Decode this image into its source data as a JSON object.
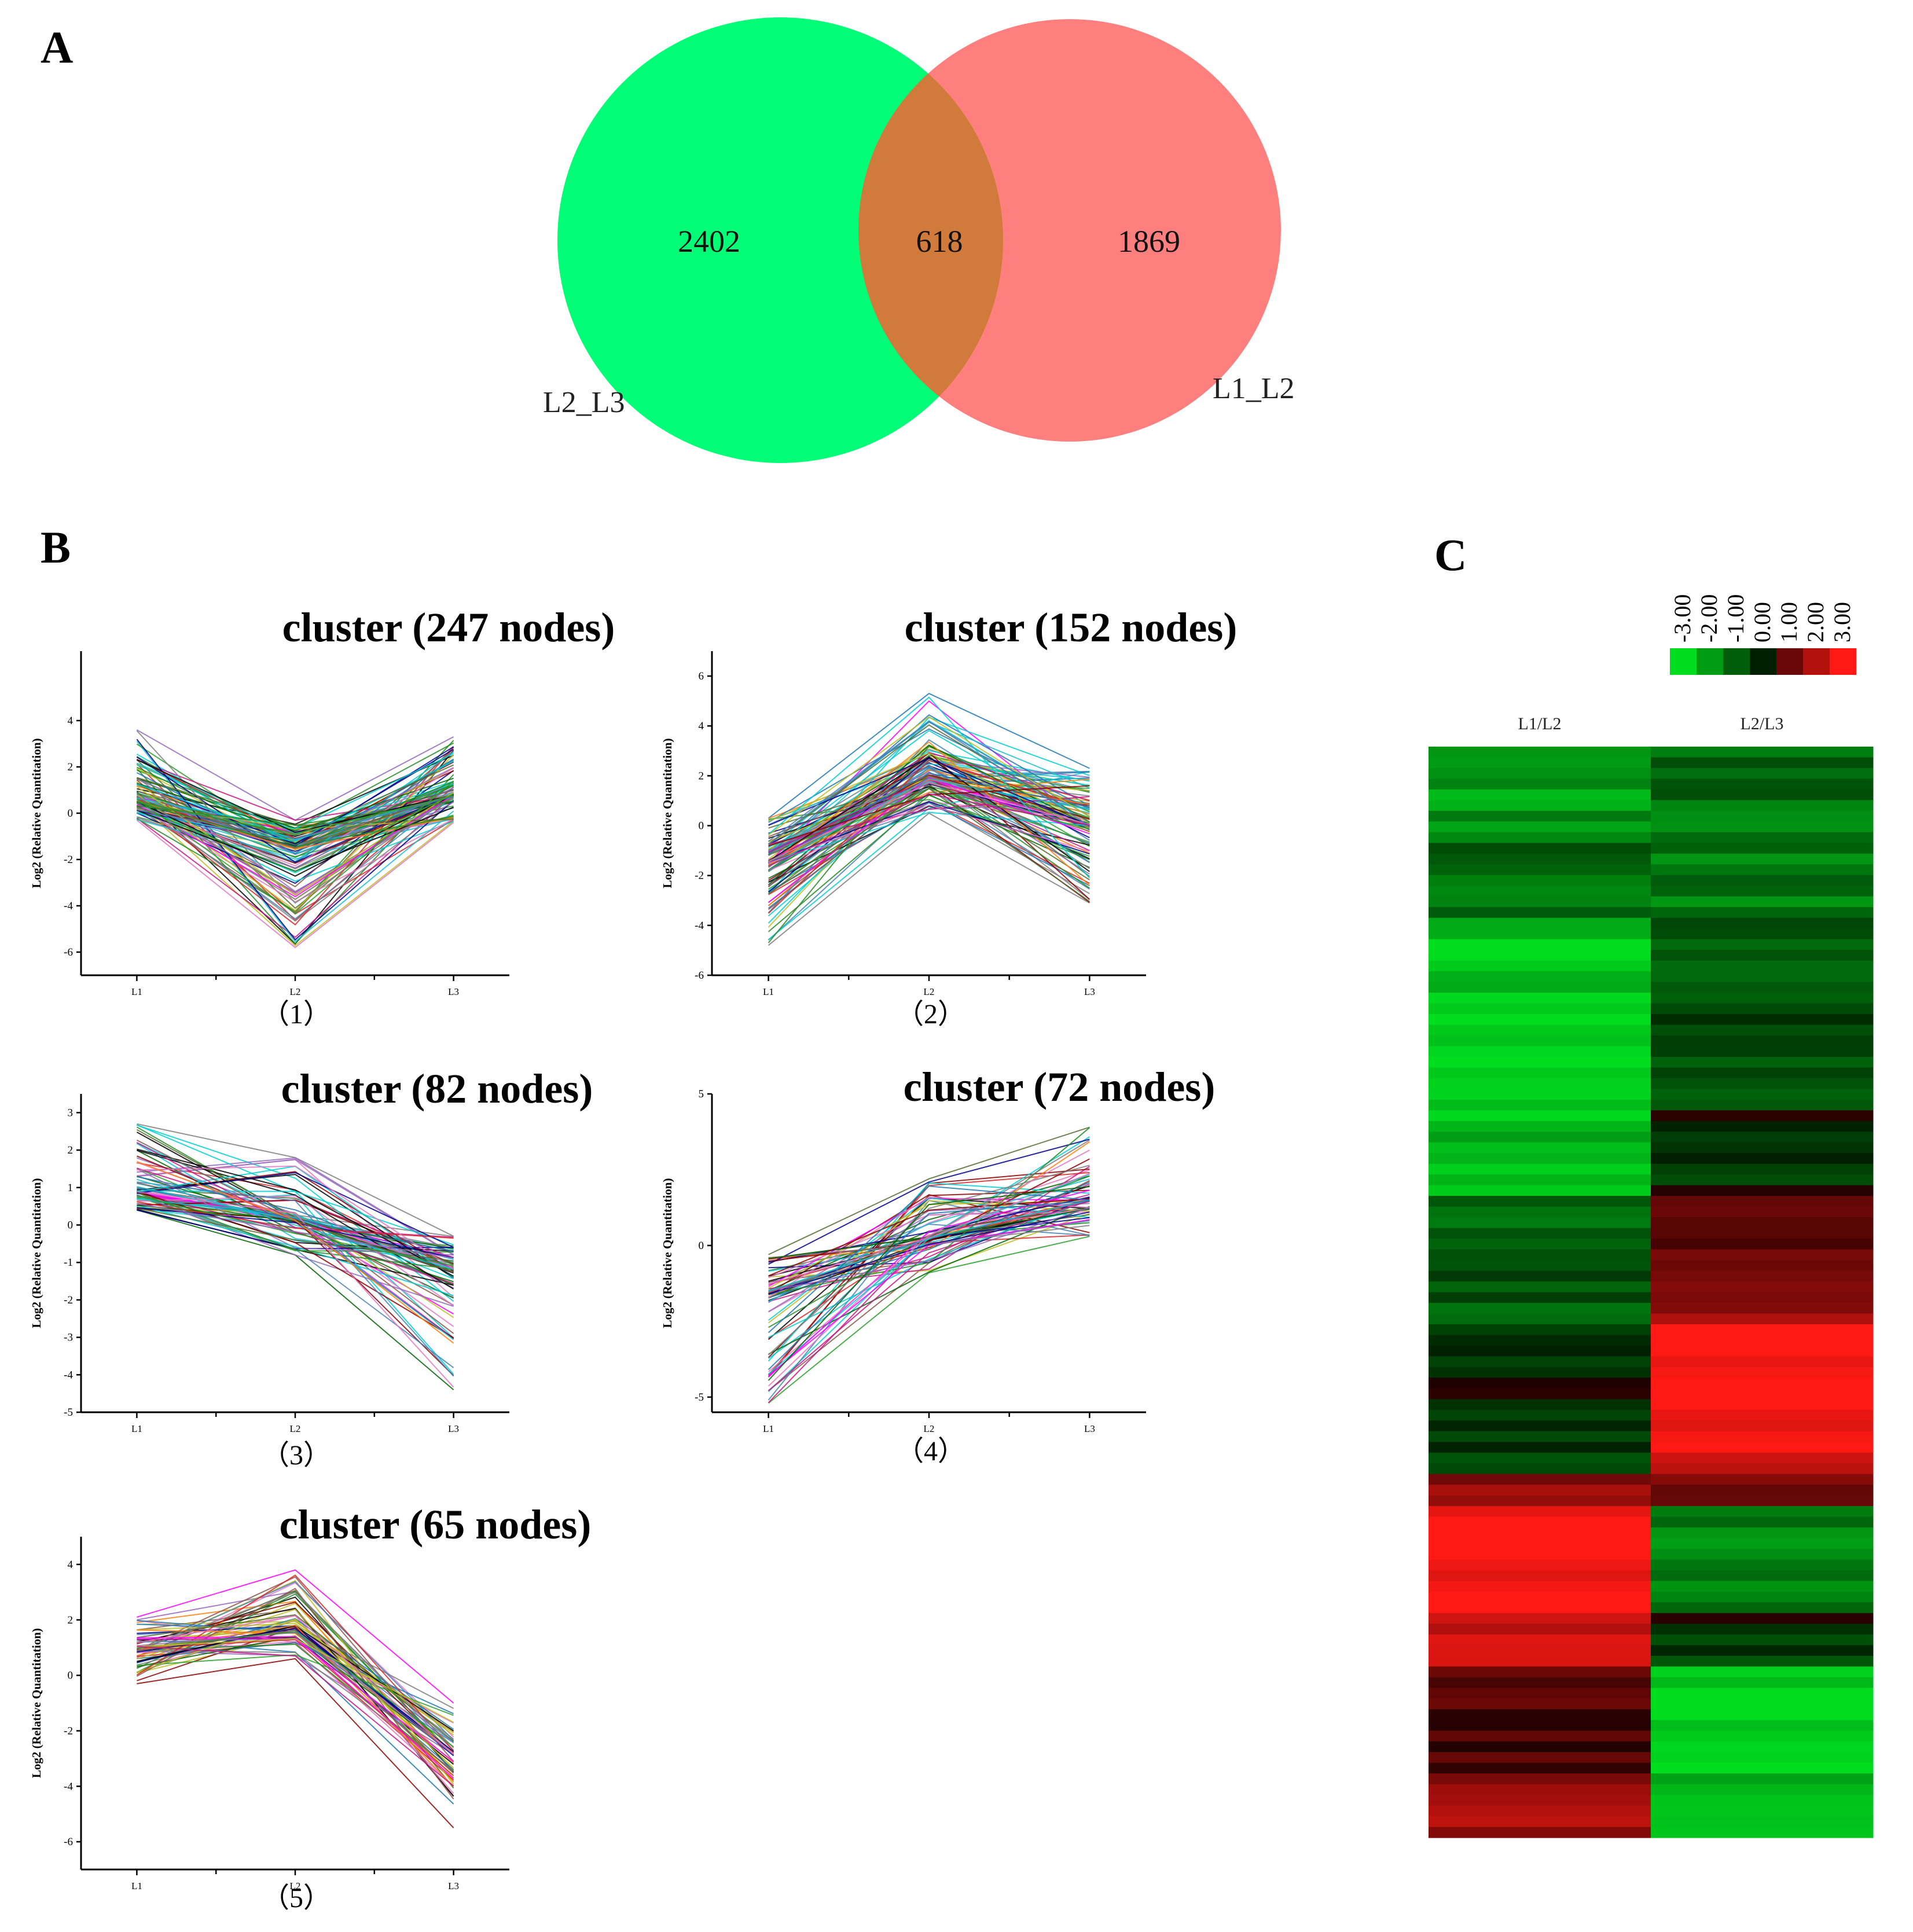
{
  "panel_letters": {
    "a": "A",
    "b": "B",
    "c": "C"
  },
  "venn": {
    "left_only": "2402",
    "overlap": "618",
    "right_only": "1869",
    "left_set": "L2_L3",
    "right_set": "L1_L2",
    "colors": {
      "left": "#00ff77",
      "right": "#ff7f7f",
      "overlap": "#d07a3c"
    }
  },
  "chart_data": [
    {
      "type": "venn",
      "sets": [
        "L2_L3",
        "L1_L2"
      ],
      "values": {
        "L2_L3_only": 2402,
        "intersection": 618,
        "L1_L2_only": 1869
      }
    },
    {
      "type": "line",
      "title": "cluster (247 nodes)",
      "sublabel": "（1）",
      "ylabel": "Log2 (Relative Quantitation)",
      "x": [
        "L1",
        "L2",
        "L3"
      ],
      "ylim": [
        -7,
        7
      ],
      "yticks": [
        -6,
        -4,
        -2,
        0,
        2,
        4
      ],
      "profiles": 247,
      "y_min": [
        -0.3,
        -5.8,
        -0.4
      ],
      "y_median": [
        0.5,
        -1.5,
        0.8
      ],
      "y_max": [
        3.6,
        -0.3,
        3.3
      ]
    },
    {
      "type": "line",
      "title": "cluster (152 nodes)",
      "sublabel": "（2）",
      "ylabel": "Log2 (Relative Quantitation)",
      "x": [
        "L1",
        "L2",
        "L3"
      ],
      "ylim": [
        -6,
        7
      ],
      "yticks": [
        -6,
        -4,
        -2,
        0,
        2,
        4,
        6
      ],
      "profiles": 152,
      "y_min": [
        -4.8,
        0.5,
        -3.1
      ],
      "y_median": [
        -1.5,
        2.0,
        0.0
      ],
      "y_max": [
        0.3,
        5.3,
        2.3
      ]
    },
    {
      "type": "line",
      "title": "cluster (82 nodes)",
      "sublabel": "（3）",
      "ylabel": "Log2 (Relative Quantitation)",
      "x": [
        "L1",
        "L2",
        "L3"
      ],
      "ylim": [
        -5,
        3.5
      ],
      "yticks": [
        -5,
        -4,
        -3,
        -2,
        -1,
        0,
        1,
        2,
        3
      ],
      "profiles": 82,
      "y_min": [
        0.4,
        -0.8,
        -4.4
      ],
      "y_median": [
        0.9,
        0.2,
        -1.2
      ],
      "y_max": [
        2.7,
        1.8,
        -0.3
      ]
    },
    {
      "type": "line",
      "title": "cluster (72 nodes)",
      "sublabel": "（4）",
      "ylabel": "Log2 (Relative Quantitation)",
      "x": [
        "L1",
        "L2",
        "L3"
      ],
      "ylim": [
        -5.5,
        5
      ],
      "yticks": [
        -5,
        0,
        5
      ],
      "profiles": 72,
      "y_min": [
        -5.2,
        -0.9,
        0.3
      ],
      "y_median": [
        -1.5,
        0.3,
        1.5
      ],
      "y_max": [
        -0.3,
        2.2,
        3.9
      ]
    },
    {
      "type": "line",
      "title": "cluster (65 nodes)",
      "sublabel": "（5）",
      "ylabel": "Log2 (Relative Quantitation)",
      "x": [
        "L1",
        "L2",
        "L3"
      ],
      "ylim": [
        -7,
        5
      ],
      "yticks": [
        -6,
        -4,
        -2,
        0,
        2,
        4
      ],
      "profiles": 65,
      "y_min": [
        -0.3,
        0.6,
        -5.5
      ],
      "y_median": [
        0.9,
        1.8,
        -2.8
      ],
      "y_max": [
        2.1,
        3.8,
        -1.0
      ]
    },
    {
      "type": "heatmap",
      "columns": [
        "L1/L2",
        "L2/L3"
      ],
      "legend_ticks": [
        "-3.00",
        "-2.00",
        "-1.00",
        "0.00",
        "1.00",
        "2.00",
        "3.00"
      ],
      "value_range": [
        -3,
        3
      ],
      "rows_blocks": [
        {
          "n": 8,
          "L1/L2": -2.0,
          "L2/L3": -1.3
        },
        {
          "n": 8,
          "L1/L2": -1.2,
          "L2/L3": -1.4
        },
        {
          "n": 8,
          "L1/L2": -2.6,
          "L2/L3": -1.0
        },
        {
          "n": 10,
          "L1/L2": -2.8,
          "L2/L3": -0.6
        },
        {
          "n": 8,
          "L1/L2": -2.5,
          "L2/L3": -0.2
        },
        {
          "n": 6,
          "L1/L2": -1.2,
          "L2/L3": 1.0
        },
        {
          "n": 6,
          "L1/L2": -0.8,
          "L2/L3": 1.4
        },
        {
          "n": 8,
          "L1/L2": -0.3,
          "L2/L3": 3.0
        },
        {
          "n": 6,
          "L1/L2": -0.5,
          "L2/L3": 2.6
        },
        {
          "n": 3,
          "L1/L2": 1.5,
          "L2/L3": 1.2
        },
        {
          "n": 10,
          "L1/L2": 3.0,
          "L2/L3": -1.6
        },
        {
          "n": 5,
          "L1/L2": 2.4,
          "L2/L3": -0.4
        },
        {
          "n": 10,
          "L1/L2": 0.6,
          "L2/L3": -2.8
        },
        {
          "n": 6,
          "L1/L2": 1.6,
          "L2/L3": -2.2
        }
      ]
    }
  ]
}
